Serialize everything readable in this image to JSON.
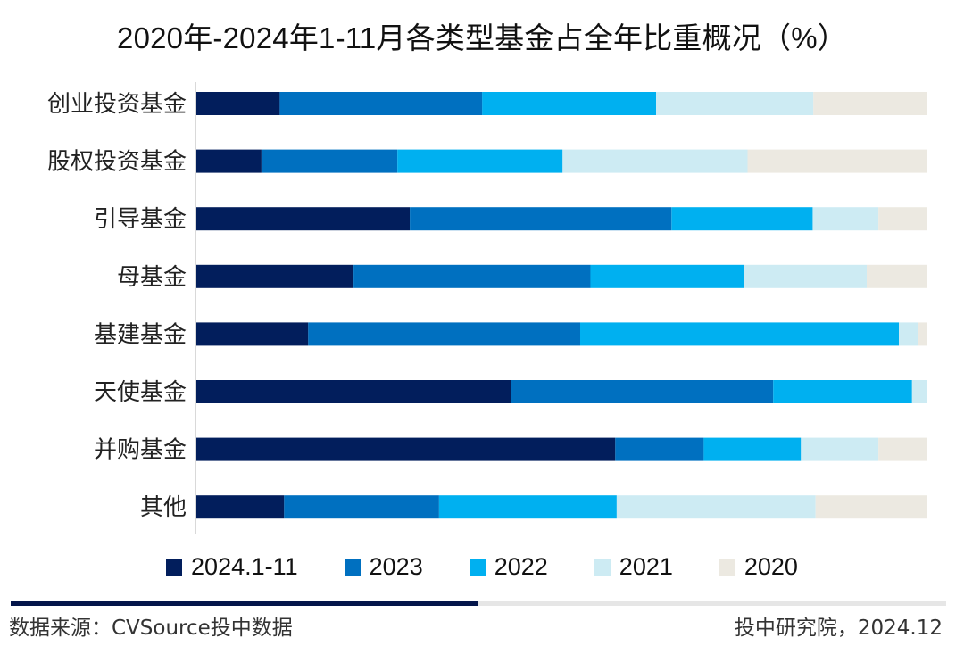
{
  "chart_data": {
    "type": "bar",
    "orientation": "horizontal",
    "stacked": "percent",
    "title": "2020年-2024年1-11月各类型基金占全年比重概况（%）",
    "xlabel": "",
    "ylabel": "",
    "xlim": [
      0,
      100
    ],
    "grid": false,
    "legend_position": "bottom",
    "categories": [
      "创业投资基金",
      "股权投资基金",
      "引导基金",
      "母基金",
      "基建基金",
      "天使基金",
      "并购基金",
      "其他"
    ],
    "series": [
      {
        "name": "2024.1-11",
        "color": "#021e5c",
        "values": [
          11.4,
          8.9,
          29.2,
          21.5,
          15.3,
          43.1,
          57.3,
          12.0
        ]
      },
      {
        "name": "2023",
        "color": "#0070c0",
        "values": [
          27.7,
          18.6,
          35.8,
          32.4,
          37.2,
          35.8,
          12.1,
          21.2
        ]
      },
      {
        "name": "2022",
        "color": "#00b0f0",
        "values": [
          23.8,
          22.6,
          19.3,
          21.0,
          43.6,
          19.0,
          13.3,
          24.3
        ]
      },
      {
        "name": "2021",
        "color": "#cdebf3",
        "values": [
          21.5,
          25.3,
          9.0,
          16.8,
          2.6,
          2.1,
          10.6,
          27.2
        ]
      },
      {
        "name": "2020",
        "color": "#ece9e1",
        "values": [
          15.6,
          24.6,
          6.7,
          8.3,
          1.3,
          0.0,
          6.7,
          15.3
        ]
      }
    ]
  },
  "footer": {
    "source": "数据来源：CVSource投中数据",
    "credit": "投中研究院，2024.12"
  }
}
